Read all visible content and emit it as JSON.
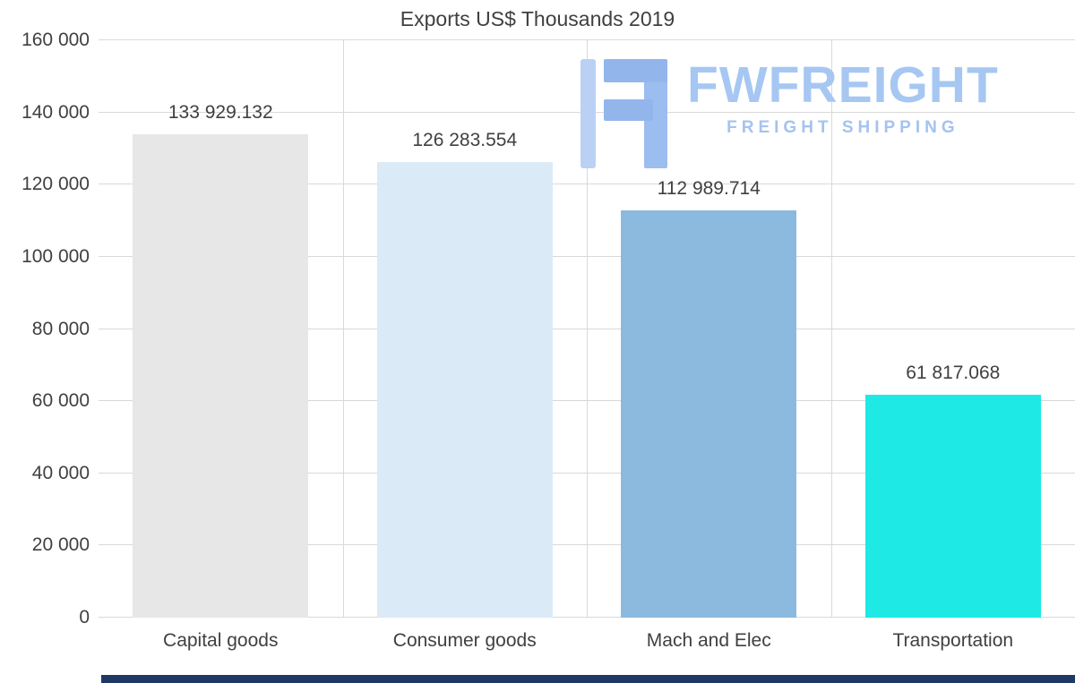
{
  "chart_data": {
    "type": "bar",
    "title": "Exports US$ Thousands 2019",
    "categories": [
      "Capital goods",
      "Consumer goods",
      "Mach and Elec",
      "Transportation"
    ],
    "values": [
      133929.132,
      126283.554,
      112989.714,
      61817.068
    ],
    "value_labels": [
      "133 929.132",
      "126 283.554",
      "112 989.714",
      "61 817.068"
    ],
    "bar_colors": [
      "#e7e7e7",
      "#dbeaf7",
      "#8cbade",
      "#1fe9e5"
    ],
    "ylim": [
      0,
      160000
    ],
    "ytick_values": [
      0,
      20000,
      40000,
      60000,
      80000,
      100000,
      120000,
      140000,
      160000
    ],
    "ytick_labels": [
      "0",
      "20 000",
      "40 000",
      "60 000",
      "80 000",
      "100 000",
      "120 000",
      "140 000",
      "160 000"
    ],
    "grid": true,
    "legend": "none",
    "text_color": "#404040",
    "gridline_color": "#d9d9d9"
  },
  "watermark": {
    "brand": "FWFREIGHT",
    "tagline": "FREIGHT SHIPPING",
    "brand_color": "#a6c7f2",
    "icon_color": "#92b6ec"
  },
  "footer": {
    "bar_color": "#203864"
  }
}
